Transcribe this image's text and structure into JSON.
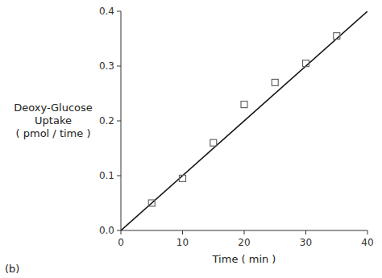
{
  "chart_data": {
    "type": "scatter",
    "xlabel": "Time ( min )",
    "ylabel": [
      "Deoxy-Glucose",
      "Uptake",
      "( pmol / time )"
    ],
    "annotation": "(b)",
    "xlim": [
      0,
      40
    ],
    "ylim": [
      0.0,
      0.4
    ],
    "xticks": [
      0,
      10,
      20,
      30,
      40
    ],
    "yticks": [
      {
        "value": 0.0,
        "label": "0.0"
      },
      0.1,
      0.2,
      0.3,
      0.4
    ],
    "grid": false,
    "series": [
      {
        "type": "line",
        "color": "#111111",
        "x": [
          0,
          40
        ],
        "values": [
          0.0,
          0.4
        ]
      },
      {
        "type": "scatter",
        "marker": "square",
        "color": "#666666",
        "x": [
          5,
          10,
          15,
          20,
          25,
          30,
          35
        ],
        "values": [
          0.05,
          0.095,
          0.16,
          0.23,
          0.27,
          0.305,
          0.355
        ]
      }
    ]
  }
}
